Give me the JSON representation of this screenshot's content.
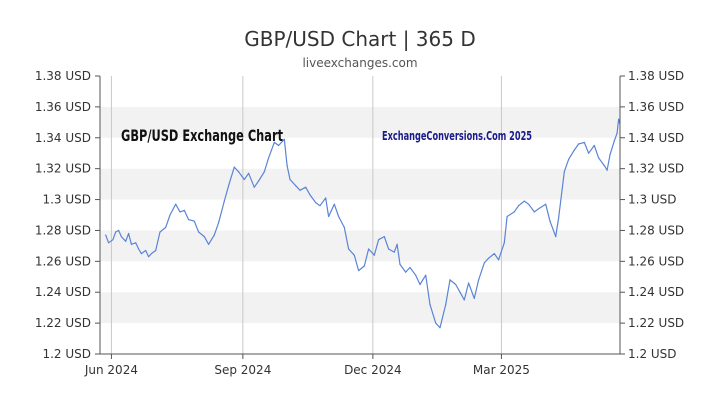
{
  "chart_data": {
    "type": "line",
    "title": "GBP/USD Chart | 365 D",
    "subtitle": "liveexchanges.com",
    "annotations": {
      "left_label": "GBP/USD Exchange Chart",
      "right_label": "ExchangeConversions.Com 2025"
    },
    "xlabel": "",
    "ylabel": "",
    "ylim": [
      1.2,
      1.38
    ],
    "y_ticks": [
      1.2,
      1.22,
      1.24,
      1.26,
      1.28,
      1.3,
      1.32,
      1.34,
      1.36,
      1.38
    ],
    "y_tick_labels": [
      "1.2 USD",
      "1.22 USD",
      "1.24 USD",
      "1.26 USD",
      "1.28 USD",
      "1.3 USD",
      "1.32 USD",
      "1.34 USD",
      "1.36 USD",
      "1.38 USD"
    ],
    "x_ticks": [
      {
        "label": "Jun 2024",
        "date": "2024-06-01"
      },
      {
        "label": "Sep 2024",
        "date": "2024-09-01"
      },
      {
        "label": "Dec 2024",
        "date": "2024-12-01"
      },
      {
        "label": "Mar 2025",
        "date": "2025-03-01"
      }
    ],
    "xlim": [
      "2024-05-24",
      "2025-05-23"
    ],
    "grid": "alternating horizontal bands",
    "series": [
      {
        "color": "#5b84d6",
        "points": [
          [
            "2024-05-28",
            1.277
          ],
          [
            "2024-05-30",
            1.272
          ],
          [
            "2024-06-02",
            1.274
          ],
          [
            "2024-06-04",
            1.279
          ],
          [
            "2024-06-06",
            1.28
          ],
          [
            "2024-06-08",
            1.276
          ],
          [
            "2024-06-11",
            1.273
          ],
          [
            "2024-06-13",
            1.278
          ],
          [
            "2024-06-15",
            1.271
          ],
          [
            "2024-06-18",
            1.272
          ],
          [
            "2024-06-20",
            1.268
          ],
          [
            "2024-06-22",
            1.265
          ],
          [
            "2024-06-25",
            1.267
          ],
          [
            "2024-06-27",
            1.263
          ],
          [
            "2024-06-29",
            1.265
          ],
          [
            "2024-07-02",
            1.267
          ],
          [
            "2024-07-05",
            1.279
          ],
          [
            "2024-07-09",
            1.282
          ],
          [
            "2024-07-12",
            1.29
          ],
          [
            "2024-07-16",
            1.297
          ],
          [
            "2024-07-19",
            1.292
          ],
          [
            "2024-07-22",
            1.293
          ],
          [
            "2024-07-25",
            1.287
          ],
          [
            "2024-07-29",
            1.286
          ],
          [
            "2024-08-01",
            1.279
          ],
          [
            "2024-08-05",
            1.276
          ],
          [
            "2024-08-08",
            1.271
          ],
          [
            "2024-08-12",
            1.277
          ],
          [
            "2024-08-15",
            1.285
          ],
          [
            "2024-08-19",
            1.299
          ],
          [
            "2024-08-22",
            1.309
          ],
          [
            "2024-08-26",
            1.321
          ],
          [
            "2024-08-29",
            1.318
          ],
          [
            "2024-09-02",
            1.313
          ],
          [
            "2024-09-05",
            1.317
          ],
          [
            "2024-09-09",
            1.308
          ],
          [
            "2024-09-12",
            1.312
          ],
          [
            "2024-09-16",
            1.318
          ],
          [
            "2024-09-19",
            1.327
          ],
          [
            "2024-09-23",
            1.337
          ],
          [
            "2024-09-26",
            1.335
          ],
          [
            "2024-09-30",
            1.339
          ],
          [
            "2024-10-02",
            1.322
          ],
          [
            "2024-10-04",
            1.313
          ],
          [
            "2024-10-08",
            1.309
          ],
          [
            "2024-10-11",
            1.306
          ],
          [
            "2024-10-15",
            1.308
          ],
          [
            "2024-10-18",
            1.303
          ],
          [
            "2024-10-22",
            1.298
          ],
          [
            "2024-10-25",
            1.296
          ],
          [
            "2024-10-29",
            1.301
          ],
          [
            "2024-10-31",
            1.289
          ],
          [
            "2024-11-04",
            1.297
          ],
          [
            "2024-11-07",
            1.289
          ],
          [
            "2024-11-11",
            1.282
          ],
          [
            "2024-11-14",
            1.268
          ],
          [
            "2024-11-18",
            1.264
          ],
          [
            "2024-11-21",
            1.254
          ],
          [
            "2024-11-25",
            1.257
          ],
          [
            "2024-11-28",
            1.268
          ],
          [
            "2024-12-02",
            1.264
          ],
          [
            "2024-12-05",
            1.274
          ],
          [
            "2024-12-09",
            1.276
          ],
          [
            "2024-12-12",
            1.268
          ],
          [
            "2024-12-16",
            1.266
          ],
          [
            "2024-12-18",
            1.271
          ],
          [
            "2024-12-20",
            1.258
          ],
          [
            "2024-12-24",
            1.253
          ],
          [
            "2024-12-27",
            1.256
          ],
          [
            "2024-12-31",
            1.251
          ],
          [
            "2025-01-03",
            1.245
          ],
          [
            "2025-01-07",
            1.251
          ],
          [
            "2025-01-10",
            1.232
          ],
          [
            "2025-01-14",
            1.22
          ],
          [
            "2025-01-17",
            1.217
          ],
          [
            "2025-01-21",
            1.232
          ],
          [
            "2025-01-24",
            1.248
          ],
          [
            "2025-01-28",
            1.245
          ],
          [
            "2025-01-31",
            1.24
          ],
          [
            "2025-02-03",
            1.235
          ],
          [
            "2025-02-06",
            1.246
          ],
          [
            "2025-02-10",
            1.236
          ],
          [
            "2025-02-13",
            1.248
          ],
          [
            "2025-02-17",
            1.259
          ],
          [
            "2025-02-20",
            1.262
          ],
          [
            "2025-02-24",
            1.265
          ],
          [
            "2025-02-27",
            1.261
          ],
          [
            "2025-03-03",
            1.272
          ],
          [
            "2025-03-05",
            1.289
          ],
          [
            "2025-03-10",
            1.292
          ],
          [
            "2025-03-13",
            1.296
          ],
          [
            "2025-03-17",
            1.299
          ],
          [
            "2025-03-20",
            1.297
          ],
          [
            "2025-03-24",
            1.292
          ],
          [
            "2025-03-27",
            1.294
          ],
          [
            "2025-04-01",
            1.297
          ],
          [
            "2025-04-04",
            1.286
          ],
          [
            "2025-04-08",
            1.276
          ],
          [
            "2025-04-10",
            1.288
          ],
          [
            "2025-04-14",
            1.318
          ],
          [
            "2025-04-17",
            1.326
          ],
          [
            "2025-04-21",
            1.332
          ],
          [
            "2025-04-24",
            1.336
          ],
          [
            "2025-04-28",
            1.337
          ],
          [
            "2025-05-01",
            1.33
          ],
          [
            "2025-05-05",
            1.335
          ],
          [
            "2025-05-08",
            1.327
          ],
          [
            "2025-05-12",
            1.322
          ],
          [
            "2025-05-14",
            1.319
          ],
          [
            "2025-05-16",
            1.329
          ],
          [
            "2025-05-19",
            1.338
          ],
          [
            "2025-05-21",
            1.343
          ],
          [
            "2025-05-22",
            1.352
          ],
          [
            "2025-05-23",
            1.349
          ]
        ]
      }
    ]
  }
}
